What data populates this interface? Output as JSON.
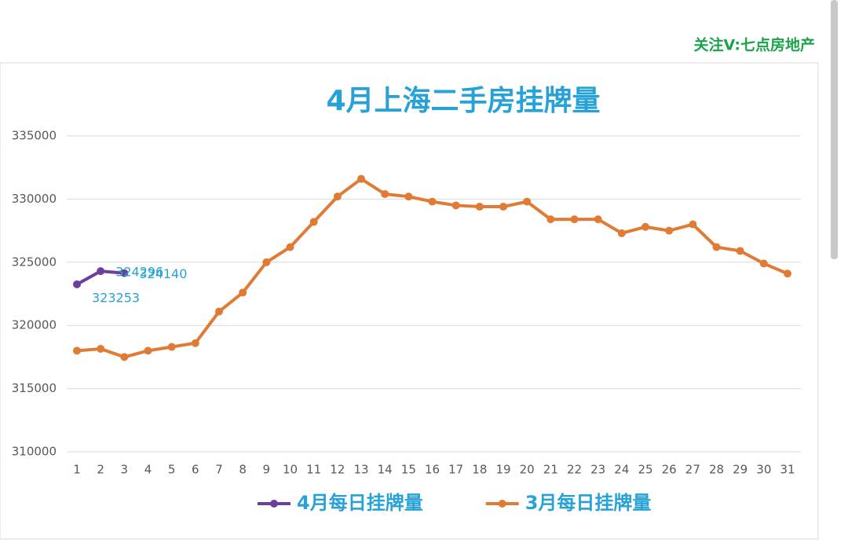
{
  "watermark": "关注V:七点房地产",
  "chart_data": {
    "type": "line",
    "title": "4月上海二手房挂牌量",
    "categories": [
      "1",
      "2",
      "3",
      "4",
      "5",
      "6",
      "7",
      "8",
      "9",
      "10",
      "11",
      "12",
      "13",
      "14",
      "15",
      "16",
      "17",
      "18",
      "19",
      "20",
      "21",
      "22",
      "23",
      "24",
      "25",
      "26",
      "27",
      "28",
      "29",
      "30",
      "31"
    ],
    "series": [
      {
        "name": "4月每日挂牌量",
        "color": "#6a3f9e",
        "data_labels": true,
        "values": [
          323253,
          324296,
          324140,
          null,
          null,
          null,
          null,
          null,
          null,
          null,
          null,
          null,
          null,
          null,
          null,
          null,
          null,
          null,
          null,
          null,
          null,
          null,
          null,
          null,
          null,
          null,
          null,
          null,
          null,
          null,
          null
        ]
      },
      {
        "name": "3月每日挂牌量",
        "color": "#e07b35",
        "data_labels": false,
        "values": [
          318000,
          318150,
          317500,
          318000,
          318300,
          318600,
          321100,
          322600,
          325000,
          326200,
          328200,
          330200,
          331600,
          330400,
          330200,
          329800,
          329500,
          329400,
          329400,
          329800,
          328400,
          328400,
          328400,
          327300,
          327800,
          327500,
          328000,
          326200,
          325900,
          324900,
          324100
        ]
      }
    ],
    "ylim": [
      310000,
      335000
    ],
    "yticks": [
      310000,
      315000,
      320000,
      325000,
      330000,
      335000
    ],
    "grid": true,
    "legend": "bottom"
  }
}
